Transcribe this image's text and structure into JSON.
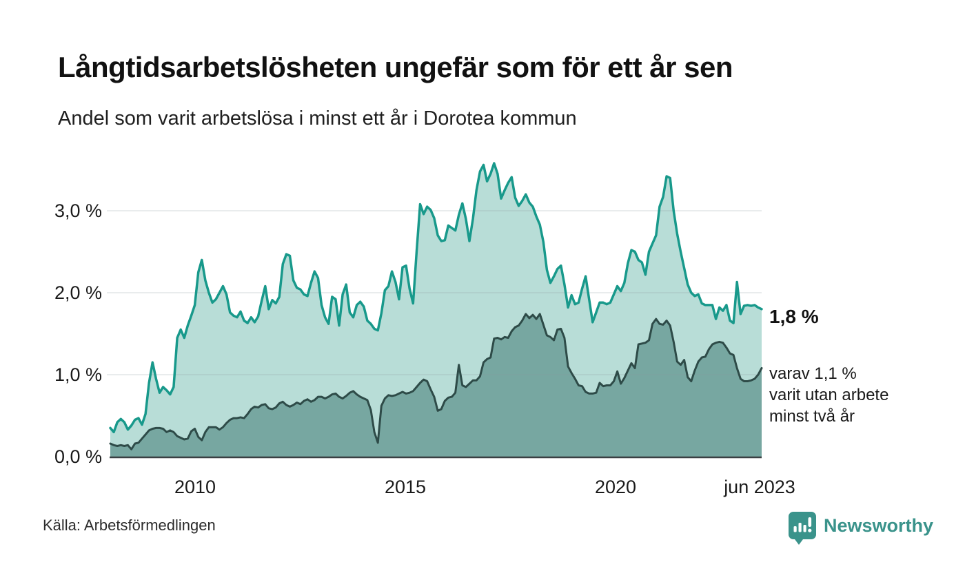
{
  "header": {
    "title": "Långtidsarbetslösheten ungefär som för ett år sen",
    "subtitle": "Andel som varit arbetslösa i minst ett år i Dorotea kommun"
  },
  "chart_data": {
    "type": "area",
    "title": "Långtidsarbetslösheten ungefär som för ett år sen",
    "subtitle": "Andel som varit arbetslösa i minst ett år i Dorotea kommun",
    "unit": "%",
    "frequency": "monthly",
    "x_start": "2008-01",
    "x_end": "2023-06",
    "ylim": [
      0,
      3.7
    ],
    "grid": "horizontal",
    "y_gridline_values": [
      1.0,
      2.0,
      3.0
    ],
    "y_ticks": [
      {
        "value": 0,
        "label": "0,0 %"
      },
      {
        "value": 1,
        "label": "1,0 %"
      },
      {
        "value": 2,
        "label": "2,0 %"
      },
      {
        "value": 3,
        "label": "3,0 %"
      }
    ],
    "x_ticks": [
      {
        "label": "2010",
        "month_index": 24
      },
      {
        "label": "2015",
        "month_index": 84
      },
      {
        "label": "2020",
        "month_index": 144
      },
      {
        "label": "jun 2023",
        "month_index": 185
      }
    ],
    "series": [
      {
        "name": "minst ett år",
        "latest_value": 1.8,
        "color": "#18998b",
        "fill": "#b8ddd7",
        "line_width": 3.5,
        "values": [
          0.35,
          0.3,
          0.42,
          0.46,
          0.42,
          0.33,
          0.38,
          0.45,
          0.47,
          0.39,
          0.52,
          0.9,
          1.15,
          0.95,
          0.78,
          0.85,
          0.81,
          0.76,
          0.85,
          1.45,
          1.55,
          1.45,
          1.6,
          1.72,
          1.85,
          2.25,
          2.4,
          2.15,
          2.0,
          1.88,
          1.92,
          2.0,
          2.08,
          1.98,
          1.76,
          1.72,
          1.7,
          1.77,
          1.66,
          1.63,
          1.7,
          1.64,
          1.71,
          1.9,
          2.08,
          1.8,
          1.91,
          1.87,
          1.95,
          2.35,
          2.47,
          2.45,
          2.15,
          2.06,
          2.04,
          1.98,
          1.96,
          2.12,
          2.26,
          2.18,
          1.85,
          1.7,
          1.62,
          1.95,
          1.92,
          1.6,
          1.98,
          2.1,
          1.76,
          1.7,
          1.85,
          1.89,
          1.83,
          1.66,
          1.62,
          1.56,
          1.54,
          1.75,
          2.03,
          2.08,
          2.26,
          2.13,
          1.92,
          2.31,
          2.33,
          2.05,
          1.87,
          2.5,
          3.08,
          2.96,
          3.05,
          3.01,
          2.91,
          2.7,
          2.63,
          2.64,
          2.82,
          2.79,
          2.76,
          2.95,
          3.09,
          2.9,
          2.63,
          2.9,
          3.25,
          3.48,
          3.56,
          3.36,
          3.45,
          3.58,
          3.45,
          3.15,
          3.25,
          3.34,
          3.41,
          3.16,
          3.06,
          3.12,
          3.2,
          3.1,
          3.05,
          2.93,
          2.83,
          2.62,
          2.28,
          2.12,
          2.2,
          2.29,
          2.33,
          2.1,
          1.82,
          1.97,
          1.86,
          1.88,
          2.05,
          2.2,
          1.92,
          1.64,
          1.76,
          1.88,
          1.88,
          1.86,
          1.88,
          1.98,
          2.08,
          2.02,
          2.12,
          2.36,
          2.52,
          2.5,
          2.4,
          2.37,
          2.22,
          2.5,
          2.6,
          2.7,
          3.05,
          3.17,
          3.42,
          3.4,
          3.0,
          2.72,
          2.5,
          2.3,
          2.1,
          2.0,
          1.96,
          1.98,
          1.87,
          1.85,
          1.85,
          1.85,
          1.68,
          1.82,
          1.78,
          1.85,
          1.66,
          1.63,
          2.13,
          1.74,
          1.84,
          1.85,
          1.84,
          1.85,
          1.82,
          1.8
        ]
      },
      {
        "name": "minst två år",
        "latest_value": 1.1,
        "color": "#2e4b48",
        "fill": "#77a7a1",
        "line_width": 3,
        "values": [
          0.16,
          0.14,
          0.13,
          0.14,
          0.13,
          0.14,
          0.09,
          0.16,
          0.17,
          0.22,
          0.27,
          0.32,
          0.34,
          0.35,
          0.35,
          0.34,
          0.3,
          0.32,
          0.3,
          0.25,
          0.23,
          0.21,
          0.22,
          0.31,
          0.34,
          0.24,
          0.2,
          0.3,
          0.36,
          0.36,
          0.36,
          0.33,
          0.36,
          0.41,
          0.45,
          0.47,
          0.47,
          0.48,
          0.47,
          0.52,
          0.58,
          0.61,
          0.6,
          0.63,
          0.64,
          0.59,
          0.58,
          0.6,
          0.65,
          0.67,
          0.63,
          0.61,
          0.63,
          0.66,
          0.64,
          0.68,
          0.7,
          0.67,
          0.69,
          0.73,
          0.73,
          0.71,
          0.73,
          0.76,
          0.77,
          0.73,
          0.71,
          0.74,
          0.78,
          0.8,
          0.76,
          0.73,
          0.71,
          0.69,
          0.57,
          0.3,
          0.17,
          0.62,
          0.71,
          0.75,
          0.74,
          0.75,
          0.77,
          0.79,
          0.77,
          0.78,
          0.8,
          0.85,
          0.9,
          0.94,
          0.92,
          0.82,
          0.73,
          0.56,
          0.58,
          0.68,
          0.72,
          0.73,
          0.78,
          1.12,
          0.87,
          0.85,
          0.89,
          0.93,
          0.93,
          0.98,
          1.15,
          1.19,
          1.21,
          1.44,
          1.45,
          1.43,
          1.46,
          1.45,
          1.53,
          1.58,
          1.6,
          1.66,
          1.74,
          1.69,
          1.73,
          1.68,
          1.74,
          1.61,
          1.48,
          1.46,
          1.42,
          1.55,
          1.56,
          1.45,
          1.1,
          1.02,
          0.95,
          0.87,
          0.86,
          0.79,
          0.77,
          0.77,
          0.78,
          0.9,
          0.86,
          0.87,
          0.87,
          0.92,
          1.04,
          0.89,
          0.96,
          1.05,
          1.14,
          1.08,
          1.37,
          1.38,
          1.39,
          1.42,
          1.62,
          1.68,
          1.62,
          1.61,
          1.66,
          1.6,
          1.4,
          1.16,
          1.12,
          1.18,
          0.97,
          0.92,
          1.05,
          1.16,
          1.21,
          1.22,
          1.31,
          1.37,
          1.39,
          1.4,
          1.39,
          1.33,
          1.26,
          1.24,
          1.08,
          0.95,
          0.92,
          0.92,
          0.93,
          0.95,
          1.0,
          1.08
        ]
      }
    ],
    "annotations": {
      "latest_one_year": "1,8 %",
      "two_year_note_lines": [
        "varav 1,1 %",
        "varit utan arbete",
        "minst två år"
      ]
    }
  },
  "footer": {
    "source": "Källa: Arbetsförmedlingen",
    "brand": "Newsworthy",
    "brand_color": "#3a938b",
    "logo_icon": "newsworthy-speech-bubble-bar-chart-icon"
  }
}
